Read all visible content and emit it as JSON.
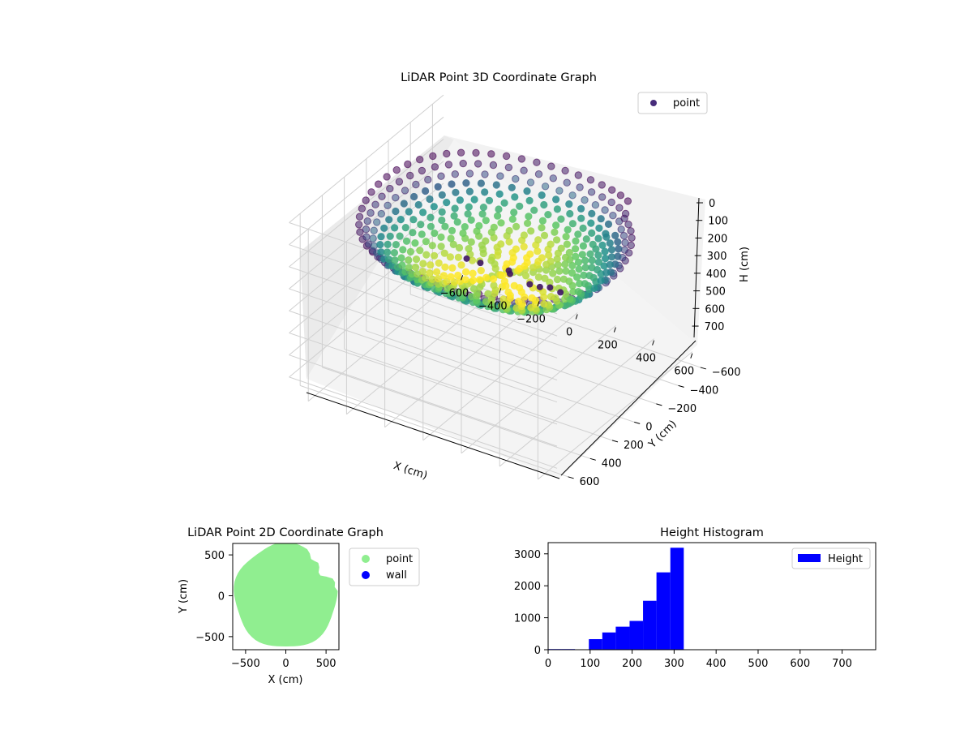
{
  "chart_data": [
    {
      "type": "scatter",
      "projection": "3d",
      "title": "LiDAR Point 3D Coordinate Graph",
      "xlabel": "X (cm)",
      "ylabel": "Y (cm)",
      "zlabel": "H (cm)",
      "xlim": [
        -700,
        700
      ],
      "ylim": [
        -700,
        700
      ],
      "zlim": [
        0,
        780
      ],
      "z_inverted": true,
      "x_ticks": [
        "−600",
        "−400",
        "−200",
        "0",
        "200",
        "400",
        "600"
      ],
      "y_ticks": [
        "600",
        "400",
        "200",
        "0",
        "−200",
        "−400",
        "−600"
      ],
      "z_ticks": [
        "0",
        "100",
        "200",
        "300",
        "400",
        "500",
        "600",
        "700"
      ],
      "grid": true,
      "legend": {
        "position": "top-right",
        "entries": [
          {
            "label": "point",
            "color": "#472c7a"
          }
        ]
      },
      "colormap": "viridis",
      "shape": {
        "description": "bowl-shaped point cloud, radius ~640 cm",
        "rim_height_cm": 100,
        "floor_height_cm": 320
      }
    },
    {
      "type": "scatter",
      "title": "LiDAR Point 2D Coordinate Graph",
      "xlabel": "X (cm)",
      "ylabel": "Y (cm)",
      "xlim": [
        -660,
        660
      ],
      "ylim": [
        -660,
        640
      ],
      "x_ticks": [
        "−500",
        "0",
        "500"
      ],
      "y_ticks": [
        "500",
        "0",
        "−500"
      ],
      "legend": {
        "position": "outside-right",
        "entries": [
          {
            "label": "point",
            "color": "#90ee90"
          },
          {
            "label": "wall",
            "color": "#0000ff"
          }
        ]
      }
    },
    {
      "type": "bar",
      "subtype": "histogram",
      "title": "Height Histogram",
      "xlim": [
        0,
        780
      ],
      "ylim": [
        0,
        3350
      ],
      "x_ticks": [
        "0",
        "100",
        "200",
        "300",
        "400",
        "500",
        "600",
        "700"
      ],
      "y_ticks": [
        "0",
        "1000",
        "2000",
        "3000"
      ],
      "bin_edges": [
        0,
        32,
        64,
        97,
        129,
        161,
        194,
        226,
        258,
        291,
        323
      ],
      "values": [
        20,
        20,
        0,
        330,
        540,
        720,
        900,
        1530,
        2420,
        3190
      ],
      "color": "#0000ff",
      "legend": {
        "position": "top-right",
        "entries": [
          {
            "label": "Height",
            "color": "#0000ff"
          }
        ]
      }
    }
  ]
}
